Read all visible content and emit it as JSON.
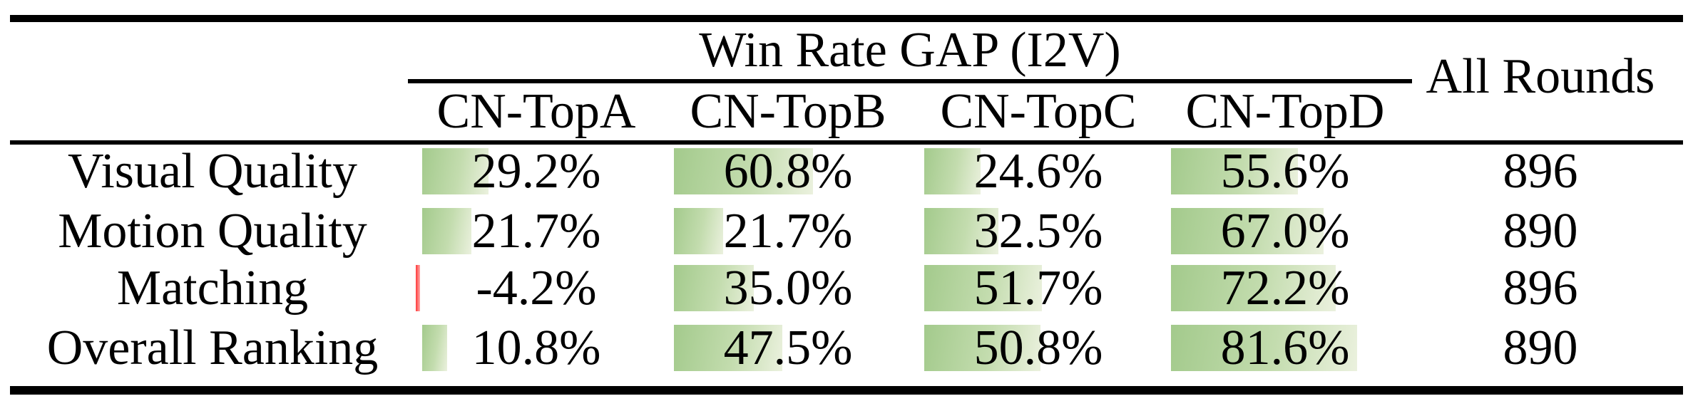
{
  "header": {
    "group": "Win Rate GAP (I2V)",
    "all_rounds": "All Rounds"
  },
  "columns": [
    "CN-TopA",
    "CN-TopB",
    "CN-TopC",
    "CN-TopD"
  ],
  "rows": [
    {
      "label": "Visual Quality",
      "texts": [
        "29.2%",
        "60.8%",
        "24.6%",
        "55.6%"
      ],
      "values": [
        29.2,
        60.8,
        24.6,
        55.6
      ],
      "all_rounds": "896"
    },
    {
      "label": "Motion Quality",
      "texts": [
        "21.7%",
        "21.7%",
        "32.5%",
        "67.0%"
      ],
      "values": [
        21.7,
        21.7,
        32.5,
        67.0
      ],
      "all_rounds": "890"
    },
    {
      "label": "Matching",
      "texts": [
        "-4.2%",
        "35.0%",
        "51.7%",
        "72.2%"
      ],
      "values": [
        -4.2,
        35.0,
        51.7,
        72.2
      ],
      "all_rounds": "896"
    },
    {
      "label": "Overall Ranking",
      "texts": [
        "10.8%",
        "47.5%",
        "50.8%",
        "81.6%"
      ],
      "values": [
        10.8,
        47.5,
        50.8,
        81.6
      ],
      "all_rounds": "890"
    }
  ],
  "colors": {
    "bar_positive_start": "#a3ca8c",
    "bar_positive_end": "#ebf1de",
    "bar_negative": "#ff3b3b",
    "rule": "#000000",
    "text": "#000000",
    "background": "#ffffff"
  },
  "chart_data": {
    "type": "table",
    "title": "Win Rate GAP (I2V)",
    "columns": [
      "CN-TopA",
      "CN-TopB",
      "CN-TopC",
      "CN-TopD",
      "All Rounds"
    ],
    "row_labels": [
      "Visual Quality",
      "Motion Quality",
      "Matching",
      "Overall Ranking"
    ],
    "win_rate_gap_percent": [
      [
        29.2,
        60.8,
        24.6,
        55.6
      ],
      [
        21.7,
        21.7,
        32.5,
        67.0
      ],
      [
        -4.2,
        35.0,
        51.7,
        72.2
      ],
      [
        10.8,
        47.5,
        50.8,
        81.6
      ]
    ],
    "all_rounds": [
      896,
      890,
      896,
      890
    ],
    "layout_hints": "booktabs-style table; green gradient in-cell data bars proportional to percent (0-100% of cell width); negative value shown as thin red bar; partial rule under group header spanning the four CN-Top columns; All Rounds spans both header rows"
  }
}
